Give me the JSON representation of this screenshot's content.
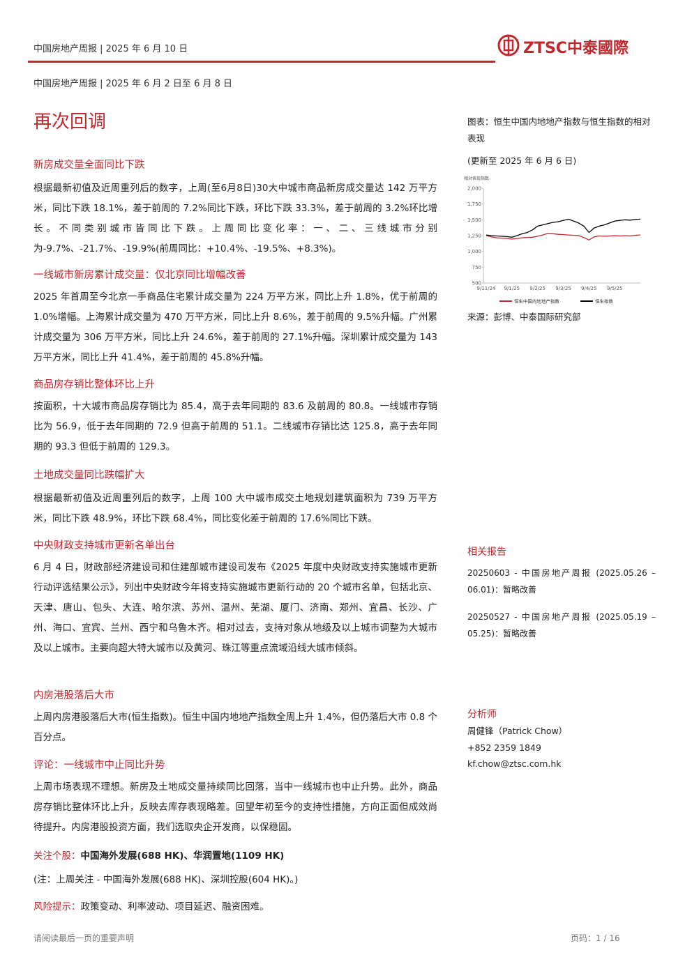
{
  "header": {
    "report_date": "中国房地产周报 | 2025 年 6 月 10 日",
    "logo": "ZTSC中泰國際"
  },
  "subheader": "中国房地产周报 | 2025 年 6 月 2 日至 6 月 8 日",
  "title": "再次回调",
  "sections": [
    {
      "heading": "新房成交量全面同比下跌",
      "paragraph": "根据最新初值及近周重列后的数字，上周(至6月8日)30大中城市商品新房成交量达 142 万平方米，同比下跌 18.1%，差于前周的 7.2%同比下跌，环比下跌 33.3%，差于前周的 3.2%环比增长。不同类别城市皆同比下跌。上周同比变化率：一、二、三线城市分别为-9.7%、-21.7%、-19.9%(前周同比：+10.4%、-19.5%、+8.3%)。"
    },
    {
      "heading": "一线城市新房累计成交量：仅北京同比增幅改善",
      "paragraph": "2025 年首周至今北京一手商品住宅累计成交量为 224 万平方米，同比上升 1.8%，优于前周的 1.0%增幅。上海累计成交量为 470 万平方米，同比上升 8.6%，差于前周的 9.5%升幅。广州累计成交量为 306 万平方米，同比上升 24.6%，差于前周的 27.1%升幅。深圳累计成交量为 143 万平方米，同比上升 41.4%，差于前周的 45.8%升幅。"
    },
    {
      "heading": "商品房存销比整体环比上升",
      "paragraph": "按面积，十大城市商品房存销比为 85.4，高于去年同期的 83.6 及前周的 80.8。一线城市存销比为 56.9，低于去年同期的 72.9 但高于前周的 51.1。二线城市存销比达 125.8，高于去年同期的 93.3 但低于前周的 129.3。"
    },
    {
      "heading": "土地成交量同比跌幅扩大",
      "paragraph": "根据最新初值及近周重列后的数字，上周 100 大中城市成交土地规划建筑面积为 739 万平方米，同比下跌 48.9%，环比下跌 68.4%，同比变化差于前周的 17.6%同比下跌。"
    },
    {
      "heading": "中央财政支持城市更新名单出台",
      "paragraph": "6 月 4 日，财政部经济建设司和住建部城市建设司发布《2025 年度中央财政支持实施城市更新行动评选结果公示》，列出中央财政今年将支持实施城市更新行动的 20 个城市名单，包括北京、天津、唐山、包头、大连、哈尔滨、苏州、温州、芜湖、厦门、济南、郑州、宜昌、长沙、广州、海口、宜宾、兰州、西宁和乌鲁木齐。相对过去，支持对象从地级及以上城市调整为大城市及以上城市。主要向超大特大城市以及黄河、珠江等重点流域沿线大城市倾斜。"
    },
    {
      "heading": "内房港股落后大市",
      "paragraph": "上周内房港股落后大市(恒生指数)。恒生中国内地地产指数全周上升 1.4%，但仍落后大市 0.8 个百分点。"
    },
    {
      "heading": "评论：一线城市中止同比升势",
      "paragraph": "上周市场表现不理想。新房及土地成交量持续同比回落，当中一线城市也中止升势。此外，商品房存销比整体环比上升，反映去库存表现略差。回望年初至今的支持性措施，方向正面但成效尚待提升。内房港股投资方面，我们选取央企开发商，以保稳固。"
    }
  ],
  "focus": {
    "label": "关注个股：",
    "text": "中国海外发展(688 HK)、华润置地(1109 HK)"
  },
  "note": "(注：上周关注 - 中国海外发展(688 HK)、深圳控股(604 HK)。)",
  "risk": {
    "label": "风险提示：",
    "text": "政策变动、利率波动、项目延迟、融资困难。"
  },
  "chart_data": {
    "type": "line",
    "title": "图表：恒生中国内地地产指数与恒生指数的相对表现",
    "subtitle": "(更新至 2025 年 6 月 6 日)",
    "y_label": "相对表现指数",
    "source": "来源：彭博、中泰国际研究部",
    "categories": [
      "9/11/24",
      null,
      null,
      null,
      null,
      "9/1/25",
      null,
      null,
      null,
      null,
      "9/2/25",
      null,
      null,
      null,
      null,
      "9/3/25",
      null,
      null,
      null,
      null,
      "9/4/25",
      null,
      null,
      null,
      null,
      "9/5/25",
      null,
      null,
      null,
      null,
      null
    ],
    "series": [
      {
        "name": "恒生中国内地地产指数",
        "color": "#c0282d",
        "values": [
          1250,
          1230,
          1215,
          1210,
          1205,
          1195,
          1205,
          1215,
          1220,
          1225,
          1240,
          1260,
          1285,
          1280,
          1270,
          1265,
          1260,
          1255,
          1250,
          1220,
          1180,
          1230,
          1245,
          1240,
          1245,
          1250,
          1245,
          1250,
          1245,
          1255,
          1260
        ]
      },
      {
        "name": "恒生指数",
        "color": "#000000",
        "values": [
          1260,
          1250,
          1245,
          1240,
          1235,
          1225,
          1250,
          1280,
          1300,
          1340,
          1400,
          1420,
          1440,
          1460,
          1470,
          1490,
          1510,
          1480,
          1450,
          1400,
          1300,
          1370,
          1400,
          1420,
          1450,
          1480,
          1490,
          1500,
          1495,
          1505,
          1510
        ]
      }
    ],
    "ylim": [
      500,
      2000
    ],
    "yticks": [
      500,
      750,
      {
        "value": 1000,
        "label": "1,000"
      },
      {
        "value": 1250,
        "label": "1,250"
      },
      {
        "value": 1500,
        "label": "1,500"
      },
      {
        "value": 1750,
        "label": "1,750"
      },
      {
        "value": 2000,
        "label": "2,000"
      }
    ],
    "grid": false,
    "legend": "bottom"
  },
  "related": {
    "title": "相关报告",
    "items": [
      "20250603 - 中国房地产周报 (2025.05.26 – 06.01)：暂略改善",
      "20250527 - 中国房地产周报 (2025.05.19 – 05.25)：暂略改善"
    ]
  },
  "analyst": {
    "title": "分析师",
    "name": "周健锋（Patrick Chow）",
    "phone": "+852 2359 1849",
    "email": "kf.chow@ztsc.com.hk"
  },
  "footer": {
    "notice": "请阅读最后一页的重要声明",
    "page": "页码：1 / 16"
  }
}
